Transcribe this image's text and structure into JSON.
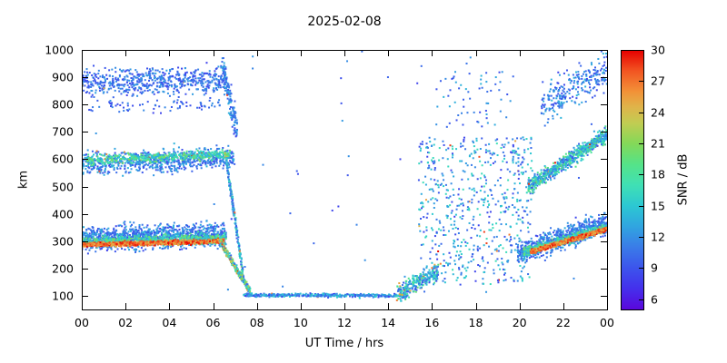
{
  "chart_data": {
    "type": "scatter",
    "subtype": "range-time-intensity",
    "title": "2025-02-08",
    "xlabel": "UT Time / hrs",
    "ylabel": "km",
    "cblabel": "SNR / dB",
    "xlim": [
      0,
      24
    ],
    "ylim": [
      50,
      1000
    ],
    "cbrange": [
      5,
      30
    ],
    "grid": false,
    "legend": "none",
    "xticks": {
      "values": [
        0,
        2,
        4,
        6,
        8,
        10,
        12,
        14,
        16,
        18,
        20,
        22,
        24
      ],
      "labels": [
        "00",
        "02",
        "04",
        "06",
        "08",
        "10",
        "12",
        "14",
        "16",
        "18",
        "20",
        "22",
        "00"
      ]
    },
    "yticks": {
      "values": [
        100,
        200,
        300,
        400,
        500,
        600,
        700,
        800,
        900,
        1000
      ],
      "labels": [
        "100",
        "200",
        "300",
        "400",
        "500",
        "600",
        "700",
        "800",
        "900",
        "1000"
      ]
    },
    "cbticks": {
      "values": [
        6,
        9,
        12,
        15,
        18,
        21,
        24,
        27,
        30
      ],
      "labels": [
        "6",
        "9",
        "12",
        "15",
        "18",
        "21",
        "24",
        "27",
        "30"
      ]
    },
    "palette": [
      {
        "v": 5,
        "c": "#5a08dc"
      },
      {
        "v": 7,
        "c": "#4430ec"
      },
      {
        "v": 9,
        "c": "#3c55ec"
      },
      {
        "v": 11,
        "c": "#3a7ce8"
      },
      {
        "v": 13,
        "c": "#30a5e0"
      },
      {
        "v": 15,
        "c": "#2cc8d2"
      },
      {
        "v": 17,
        "c": "#40e0b4"
      },
      {
        "v": 19,
        "c": "#55e388"
      },
      {
        "v": 21,
        "c": "#84d858"
      },
      {
        "v": 23,
        "c": "#c2cc52"
      },
      {
        "v": 24.5,
        "c": "#dfb44a"
      },
      {
        "v": 26,
        "c": "#f29238"
      },
      {
        "v": 28,
        "c": "#f25522"
      },
      {
        "v": 30,
        "c": "#e60000"
      }
    ],
    "seed": 20250208,
    "point_size": 2,
    "bands": [
      {
        "name": "morning-topside-900km",
        "t": [
          0,
          6.6
        ],
        "alt": [
          880,
          890
        ],
        "sigma": 50,
        "n": 620,
        "snr": [
          8,
          13
        ],
        "hot": 0.01
      },
      {
        "name": "morning-topside-790km-sparse",
        "t": [
          0.2,
          6.4
        ],
        "alt": [
          790,
          800
        ],
        "sigma": 22,
        "n": 70,
        "snr": [
          8,
          12
        ]
      },
      {
        "name": "morning-600km-halo",
        "t": [
          0,
          7.0
        ],
        "alt": [
          585,
          605
        ],
        "sigma": 38,
        "n": 760,
        "snr": [
          8,
          14
        ],
        "hot": 0.015
      },
      {
        "name": "morning-600km-core",
        "t": [
          0.2,
          6.8
        ],
        "alt": [
          595,
          618
        ],
        "sigma": 16,
        "n": 480,
        "snr": [
          13,
          21
        ],
        "hot": 0.02
      },
      {
        "name": "morning-F-halo",
        "t": [
          0,
          6.6
        ],
        "alt": [
          310,
          325
        ],
        "sigma": 42,
        "n": 1150,
        "snr": [
          8,
          14
        ]
      },
      {
        "name": "morning-F-mid",
        "t": [
          0,
          6.6
        ],
        "alt": [
          297,
          310
        ],
        "sigma": 18,
        "n": 700,
        "snr": [
          13,
          21
        ]
      },
      {
        "name": "morning-F-core",
        "t": [
          0,
          6.5
        ],
        "alt": [
          286,
          300
        ],
        "sigma": 8,
        "n": 850,
        "snr": [
          24,
          30
        ]
      },
      {
        "name": "dawn-descent-topside",
        "t": [
          6.4,
          7.1
        ],
        "alt": [
          950,
          700
        ],
        "sigma": 55,
        "n": 150,
        "snr": [
          8,
          14
        ],
        "hot": 0.02
      },
      {
        "name": "dawn-descent-600km",
        "t": [
          6.6,
          7.4
        ],
        "alt": [
          600,
          160
        ],
        "sigma": 22,
        "n": 210,
        "snr": [
          9,
          18
        ],
        "hot": 0.03
      },
      {
        "name": "dawn-descent-F",
        "t": [
          6.3,
          7.7
        ],
        "alt": [
          300,
          115
        ],
        "sigma": 13,
        "n": 330,
        "snr": [
          10,
          26
        ],
        "hot": 0.08
      },
      {
        "name": "daytime-100km-layer",
        "t": [
          7.4,
          14.9
        ],
        "alt": [
          103,
          100
        ],
        "sigma": 6,
        "n": 430,
        "snr": [
          8,
          16
        ],
        "hot": 0.02
      },
      {
        "name": "afternoon-rise",
        "t": [
          14.4,
          16.3
        ],
        "alt": [
          105,
          195
        ],
        "sigma": 32,
        "n": 270,
        "snr": [
          9,
          20
        ],
        "hot": 0.05
      },
      {
        "name": "evening-spread",
        "t": [
          15.4,
          20.6
        ],
        "alt": [
          140,
          680
        ],
        "dist": "uniform",
        "n": 620,
        "snr": [
          8,
          17
        ],
        "hot": 0.02
      },
      {
        "name": "evening-topside-sparse",
        "t": [
          16.0,
          19.5
        ],
        "alt": [
          700,
          920
        ],
        "dist": "uniform",
        "n": 60,
        "snr": [
          8,
          14
        ]
      },
      {
        "name": "night-600km-band",
        "t": [
          20.4,
          24
        ],
        "alt": [
          500,
          690
        ],
        "sigma": 28,
        "n": 720,
        "snr": [
          9,
          20
        ],
        "hot": 0.02
      },
      {
        "name": "night-topside-scatter",
        "t": [
          21.0,
          24
        ],
        "alt": [
          800,
          930
        ],
        "sigma": 65,
        "n": 260,
        "snr": [
          8,
          14
        ]
      },
      {
        "name": "night-F-halo",
        "t": [
          19.9,
          24
        ],
        "alt": [
          255,
          365
        ],
        "sigma": 38,
        "n": 850,
        "snr": [
          8,
          14
        ]
      },
      {
        "name": "night-F-mid",
        "t": [
          20.2,
          24
        ],
        "alt": [
          258,
          350
        ],
        "sigma": 16,
        "n": 480,
        "snr": [
          13,
          21
        ]
      },
      {
        "name": "night-F-core",
        "t": [
          20.5,
          24
        ],
        "alt": [
          260,
          345
        ],
        "sigma": 8,
        "n": 620,
        "snr": [
          24,
          30
        ]
      },
      {
        "name": "sporadic-isolated",
        "t": [
          0,
          24
        ],
        "alt": [
          90,
          1000
        ],
        "dist": "uniform",
        "n": 55,
        "snr": [
          8,
          13
        ]
      }
    ]
  }
}
